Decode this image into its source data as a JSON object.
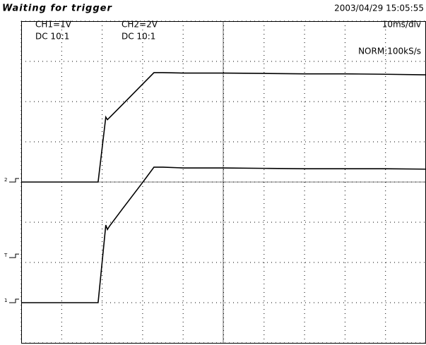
{
  "chart_data": {
    "type": "line",
    "title": "Waiting for trigger",
    "timestamp": "2003/04/29 15:05:55",
    "channels": [
      {
        "label": "CH1=1V",
        "coupling": "DC 10:1"
      },
      {
        "label": "CH2=2V",
        "coupling": "DC 10:1"
      }
    ],
    "timebase": "10ms/div",
    "sample_rate": "NORM:100kS/s",
    "x": [
      0,
      19,
      20.9,
      21.3,
      21.8,
      25,
      30,
      32.8,
      35,
      40,
      50,
      60,
      70,
      80,
      90,
      100
    ],
    "series": [
      {
        "color": "#000000",
        "axis": "y2",
        "values": [
          0,
          0,
          3.23,
          3.1,
          3.2,
          3.85,
          4.87,
          5.44,
          5.44,
          5.42,
          5.42,
          5.4,
          5.38,
          5.38,
          5.36,
          5.33
        ]
      },
      {
        "color": "#000000",
        "values": [
          0,
          0,
          1.93,
          1.82,
          1.9,
          2.33,
          2.99,
          3.37,
          3.37,
          3.35,
          3.35,
          3.34,
          3.33,
          3.33,
          3.33,
          3.32
        ]
      }
    ],
    "markers": [
      {
        "label": "2",
        "value": 0,
        "axis": "y2"
      },
      {
        "label": "T",
        "value": 1.12
      },
      {
        "label": "1",
        "value": 0
      }
    ],
    "xlim": [
      0,
      100
    ],
    "xticks": [
      0,
      10,
      20,
      30,
      40,
      50,
      60,
      70,
      80,
      90,
      100
    ],
    "ylim": [
      -1,
      7
    ],
    "yticks": [
      -1,
      0,
      1,
      2,
      3,
      4,
      5,
      6,
      7
    ],
    "y2lim": [
      -8,
      8
    ],
    "grid": true
  }
}
